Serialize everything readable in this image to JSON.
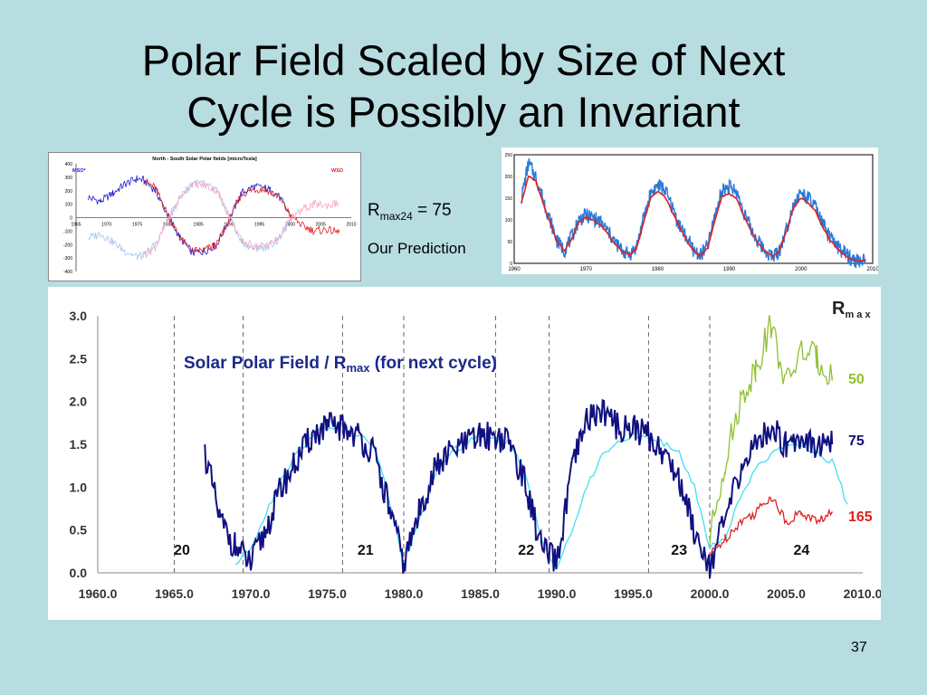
{
  "slide": {
    "title_line1": "Polar Field Scaled by Size of Next",
    "title_line2": "Cycle is Possibly an Invariant",
    "rmax_label_prefix": "R",
    "rmax_label_sub": "max24",
    "rmax_label_suffix": " = 75",
    "prediction_label": "Our Prediction",
    "page_number": "37"
  },
  "chart_data": [
    {
      "type": "line",
      "title": "North - South Solar Polar fields [microTesla]",
      "legend": [
        "MSO*",
        "WSO"
      ],
      "legend_colors": [
        "#1b1bd0",
        "#e02020"
      ],
      "x_ticks": [
        "1965",
        "1970",
        "1975",
        "1980",
        "1985",
        "1990",
        "1995",
        "2000",
        "2005",
        "2010"
      ],
      "y_ticks": [
        "400",
        "300",
        "200",
        "100",
        "0",
        "-100",
        "-200",
        "-300",
        "-400"
      ],
      "xlim": [
        1965,
        2010
      ],
      "ylim": [
        -400,
        400
      ],
      "series": [
        {
          "name": "MSO*",
          "color": "#1b1bd0",
          "x": [
            1967,
            1969,
            1971,
            1973,
            1975,
            1976,
            1978,
            1980,
            1982,
            1984,
            1986,
            1988,
            1990,
            1992,
            1994,
            1996,
            1998,
            2000
          ],
          "y": [
            150,
            120,
            180,
            250,
            290,
            280,
            200,
            20,
            -150,
            -260,
            -250,
            -200,
            -20,
            180,
            230,
            220,
            170,
            20
          ]
        },
        {
          "name": "WSO",
          "color": "#e02020",
          "x": [
            1976,
            1978,
            1980,
            1982,
            1984,
            1986,
            1988,
            1990,
            1992,
            1994,
            1996,
            1998,
            2000,
            2002,
            2004,
            2006,
            2008
          ],
          "y": [
            280,
            220,
            20,
            -150,
            -250,
            -240,
            -200,
            -20,
            170,
            210,
            210,
            160,
            20,
            -60,
            -100,
            -90,
            -110
          ]
        },
        {
          "color": "#a8c4f0",
          "x": [
            1967,
            1969,
            1971,
            1973,
            1975,
            1976,
            1978,
            1980,
            1982,
            1984,
            1986,
            1988,
            1990,
            1992,
            1994,
            1996,
            1998,
            2000
          ],
          "y": [
            -150,
            -120,
            -180,
            -250,
            -290,
            -280,
            -200,
            -20,
            150,
            260,
            250,
            200,
            20,
            -180,
            -230,
            -220,
            -170,
            -20
          ]
        },
        {
          "color": "#f0a8c0",
          "x": [
            1976,
            1978,
            1980,
            1982,
            1984,
            1986,
            1988,
            1990,
            1992,
            1994,
            1996,
            1998,
            2000,
            2002,
            2004,
            2006,
            2008
          ],
          "y": [
            -280,
            -220,
            -20,
            150,
            250,
            240,
            200,
            20,
            -170,
            -210,
            -210,
            -160,
            -20,
            60,
            100,
            90,
            110
          ]
        }
      ]
    },
    {
      "type": "line",
      "x_ticks": [
        "1960",
        "1970",
        "1980",
        "1990",
        "2000",
        "2010"
      ],
      "y_ticks": [
        "250",
        "200",
        "150",
        "100",
        "50",
        "0"
      ],
      "xlim": [
        1960,
        2010
      ],
      "ylim": [
        0,
        250
      ],
      "series": [
        {
          "color": "#2a7ad8",
          "x": [
            1961,
            1962,
            1963,
            1964,
            1965,
            1966,
            1967,
            1968,
            1969,
            1970,
            1971,
            1972,
            1973,
            1974,
            1975,
            1976,
            1977,
            1978,
            1979,
            1980,
            1981,
            1982,
            1983,
            1984,
            1985,
            1986,
            1987,
            1988,
            1989,
            1990,
            1991,
            1992,
            1993,
            1994,
            1995,
            1996,
            1997,
            1998,
            1999,
            2000,
            2001,
            2002,
            2003,
            2004,
            2005,
            2006,
            2007,
            2008,
            2009
          ],
          "y": [
            150,
            230,
            200,
            150,
            100,
            50,
            30,
            60,
            100,
            110,
            105,
            95,
            75,
            50,
            30,
            20,
            35,
            100,
            160,
            180,
            170,
            130,
            90,
            60,
            30,
            20,
            40,
            110,
            170,
            175,
            165,
            120,
            80,
            50,
            30,
            15,
            30,
            80,
            140,
            160,
            150,
            130,
            90,
            60,
            40,
            25,
            10,
            5,
            5
          ]
        },
        {
          "color": "#e02020",
          "x": [
            1961,
            1962,
            1963,
            1964,
            1965,
            1966,
            1967,
            1968,
            1969,
            1970,
            1971,
            1972,
            1973,
            1974,
            1975,
            1976,
            1977,
            1978,
            1979,
            1980,
            1981,
            1982,
            1983,
            1984,
            1985,
            1986,
            1987,
            1988,
            1989,
            1990,
            1991,
            1992,
            1993,
            1994,
            1995,
            1996,
            1997,
            1998,
            1999,
            2000,
            2001,
            2002,
            2003,
            2004,
            2005,
            2006,
            2007,
            2008,
            2009
          ],
          "y": [
            140,
            200,
            190,
            140,
            95,
            50,
            30,
            55,
            95,
            105,
            100,
            90,
            70,
            45,
            28,
            20,
            30,
            90,
            150,
            165,
            155,
            120,
            85,
            55,
            28,
            18,
            35,
            100,
            155,
            160,
            150,
            110,
            75,
            45,
            28,
            15,
            28,
            75,
            130,
            150,
            140,
            120,
            85,
            55,
            35,
            20,
            10,
            5,
            5
          ]
        }
      ]
    },
    {
      "type": "line",
      "title": "Solar Polar Field / R",
      "title_sub": "max",
      "title_suffix": " (for next cycle)",
      "legend_title": "R",
      "legend_title_sub": "m a x",
      "x_ticks": [
        "1960.0",
        "1965.0",
        "1970.0",
        "1975.0",
        "1980.0",
        "1985.0",
        "1990.0",
        "1995.0",
        "2000.0",
        "2005.0",
        "2010.0"
      ],
      "y_ticks": [
        "3.0",
        "2.5",
        "2.0",
        "1.5",
        "1.0",
        "0.5",
        "0.0"
      ],
      "xlim": [
        1960,
        2010
      ],
      "ylim": [
        0,
        3
      ],
      "grid": "dashed vertical lines at cycle minima",
      "cycle_minima": [
        1965,
        1969.5,
        1976,
        1980,
        1986,
        1989.5,
        1996,
        2000
      ],
      "cycle_labels": [
        {
          "label": "20",
          "x": 1965.5
        },
        {
          "label": "21",
          "x": 1977.5
        },
        {
          "label": "22",
          "x": 1988
        },
        {
          "label": "23",
          "x": 1998
        },
        {
          "label": "24",
          "x": 2006
        }
      ],
      "series": [
        {
          "name": "75",
          "color": "#101080",
          "x": [
            1967,
            1968,
            1969,
            1970,
            1971,
            1972,
            1973,
            1974,
            1975,
            1976,
            1977,
            1978,
            1979,
            1980,
            1981,
            1982,
            1983,
            1984,
            1985,
            1986,
            1987,
            1988,
            1989,
            1990,
            1991,
            1992,
            1993,
            1994,
            1995,
            1996,
            1997,
            1998,
            1999,
            2000,
            2001,
            2002,
            2003,
            2004,
            2005,
            2006,
            2007,
            2008
          ],
          "y": [
            1.4,
            0.6,
            0.3,
            0.1,
            0.5,
            1.0,
            1.3,
            1.6,
            1.7,
            1.7,
            1.6,
            1.4,
            0.8,
            0.1,
            0.7,
            1.2,
            1.4,
            1.5,
            1.6,
            1.6,
            1.5,
            1.0,
            0.3,
            0.1,
            1.2,
            1.8,
            1.9,
            1.7,
            1.7,
            1.6,
            1.4,
            1.1,
            0.5,
            0.1,
            0.6,
            1.2,
            1.5,
            1.7,
            1.5,
            1.6,
            1.5,
            1.5
          ]
        },
        {
          "color": "#40e0f0",
          "x": [
            1969,
            1970,
            1971,
            1972,
            1973,
            1974,
            1975,
            1976,
            1977,
            1978,
            1979,
            1980,
            1981,
            1982,
            1983,
            1984,
            1985,
            1986,
            1987,
            1988,
            1989,
            1990,
            1991,
            1992,
            1993,
            1994,
            1995,
            1996,
            1997,
            1998,
            1999,
            2000,
            2001,
            2002,
            2003,
            2004,
            2005,
            2006,
            2007,
            2008,
            2009
          ],
          "y": [
            0.1,
            0.3,
            0.7,
            1.1,
            1.4,
            1.6,
            1.7,
            1.7,
            1.6,
            1.5,
            0.9,
            0.1,
            0.6,
            1.1,
            1.4,
            1.5,
            1.6,
            1.6,
            1.5,
            1.1,
            0.4,
            0.05,
            0.5,
            1.0,
            1.4,
            1.5,
            1.6,
            1.6,
            1.5,
            1.4,
            1.0,
            0.3,
            0.4,
            0.9,
            1.2,
            1.4,
            1.5,
            1.5,
            1.4,
            1.3,
            0.8
          ]
        },
        {
          "name": "50",
          "color": "#90c030",
          "x": [
            2000,
            2001,
            2002,
            2003,
            2004,
            2005,
            2006,
            2007,
            2008
          ],
          "y": [
            0.4,
            1.3,
            2.0,
            2.4,
            2.9,
            2.2,
            2.6,
            2.5,
            2.3
          ]
        },
        {
          "name": "165",
          "color": "#e02020",
          "x": [
            2000,
            2001,
            2002,
            2003,
            2004,
            2005,
            2006,
            2007,
            2008
          ],
          "y": [
            0.2,
            0.4,
            0.6,
            0.7,
            0.9,
            0.6,
            0.7,
            0.6,
            0.7
          ]
        }
      ]
    }
  ]
}
